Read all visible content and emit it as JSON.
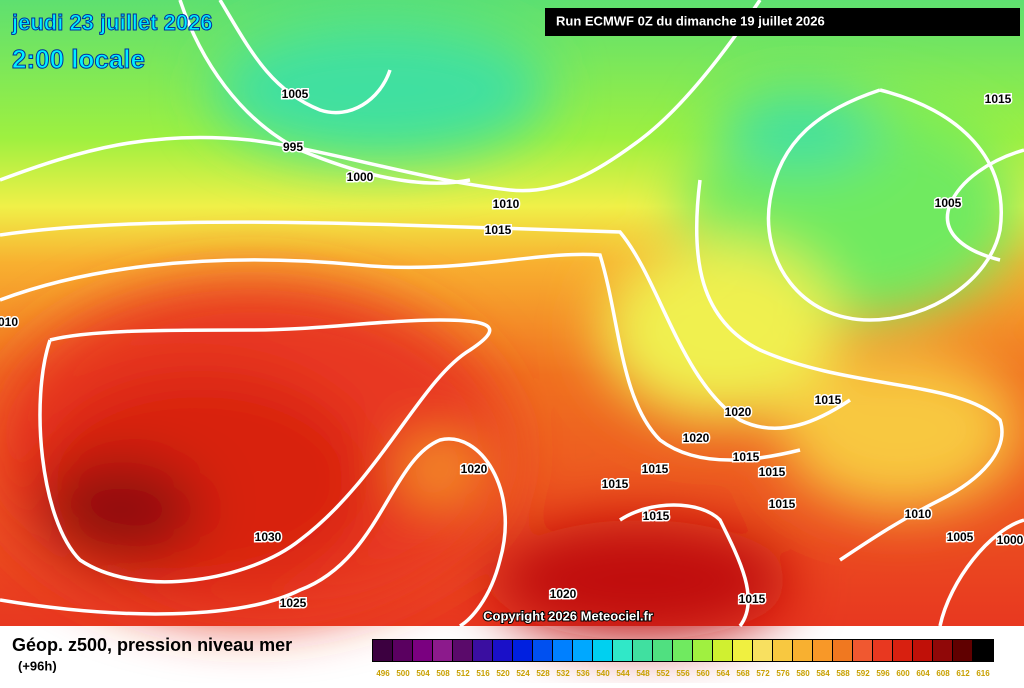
{
  "header": {
    "date": "jeudi 23 juillet 2026",
    "time": "2:00 locale",
    "run": "Run ECMWF 0Z du dimanche 19 juillet 2026"
  },
  "isobar_labels": [
    "1005",
    "995",
    "1000",
    "1010",
    "1015",
    "1015",
    "1005",
    "010",
    "1015",
    "1020",
    "1020",
    "1015",
    "1015",
    "1015",
    "1020",
    "1015",
    "1015",
    "1015",
    "1010",
    "1005",
    "1000",
    "1030",
    "1025",
    "1020",
    "1015"
  ],
  "copyright": "Copyright 2026 Meteociel.fr",
  "legend": {
    "title": "Géop. z500, pression niveau mer",
    "step": "(+96h)",
    "scale": [
      {
        "label": "496",
        "color": "#3c0040"
      },
      {
        "label": "500",
        "color": "#5a0060"
      },
      {
        "label": "504",
        "color": "#7a0080"
      },
      {
        "label": "508",
        "color": "#8c1a8c"
      },
      {
        "label": "512",
        "color": "#5a0a6a"
      },
      {
        "label": "516",
        "color": "#3a0ea0"
      },
      {
        "label": "520",
        "color": "#1a10c8"
      },
      {
        "label": "524",
        "color": "#0020e0"
      },
      {
        "label": "528",
        "color": "#0050f0"
      },
      {
        "label": "532",
        "color": "#0080ff"
      },
      {
        "label": "536",
        "color": "#00a8ff"
      },
      {
        "label": "540",
        "color": "#00d0f0"
      },
      {
        "label": "544",
        "color": "#30e8c8"
      },
      {
        "label": "548",
        "color": "#40e0a0"
      },
      {
        "label": "552",
        "color": "#50e080"
      },
      {
        "label": "556",
        "color": "#70ea60"
      },
      {
        "label": "560",
        "color": "#a0f040"
      },
      {
        "label": "564",
        "color": "#d0f030"
      },
      {
        "label": "568",
        "color": "#f0f040"
      },
      {
        "label": "572",
        "color": "#f8e060"
      },
      {
        "label": "576",
        "color": "#f8c840"
      },
      {
        "label": "580",
        "color": "#f8b030"
      },
      {
        "label": "584",
        "color": "#f89828"
      },
      {
        "label": "588",
        "color": "#f07820"
      },
      {
        "label": "592",
        "color": "#f05830"
      },
      {
        "label": "596",
        "color": "#e83820"
      },
      {
        "label": "600",
        "color": "#d82010"
      },
      {
        "label": "604",
        "color": "#c01008"
      },
      {
        "label": "608",
        "color": "#900808"
      },
      {
        "label": "612",
        "color": "#600000"
      },
      {
        "label": "616",
        "color": "#000000"
      }
    ]
  }
}
